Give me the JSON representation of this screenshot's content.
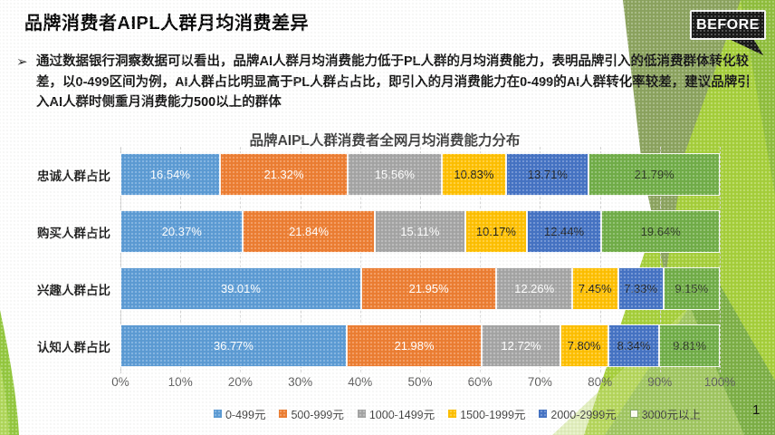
{
  "slide": {
    "title": "品牌消费者AIPL人群月均消费差异",
    "badge": "BEFORE",
    "bullet_char": "➢",
    "bullet_text": "通过数据银行洞察数据可以看出，品牌AI人群月均消费能力低于PL人群的月均消费能力，表明品牌引入的低消费群体转化较差，以0-499区间为例，AI人群占比明显高于PL人群占占比，即引入的月消费能力在0-499的AI人群转化率较差，建议品牌引入AI人群时侧重月消费能力500以上的群体",
    "page_number": "1"
  },
  "theme": {
    "badge_bg": "#161616",
    "deco_greens": [
      "#A6CF3A",
      "#8FBE3C",
      "#8BA35E",
      "#7CAF45",
      "#93C83E"
    ]
  },
  "chart_data": {
    "type": "bar",
    "orientation": "horizontal",
    "stacked_100": true,
    "title": "品牌AIPL人群消费者全网月均消费能力分布",
    "categories": [
      "忠诚人群占比",
      "购买人群占比",
      "兴趣人群占比",
      "认知人群占比"
    ],
    "series": [
      {
        "name": "0-499元",
        "color": "#5B9BD5",
        "label_color": "#FFFFFF",
        "legend_fill": "#5B9BD5",
        "legend_border": "#5B9BD5",
        "values": [
          16.54,
          20.37,
          39.01,
          36.77
        ]
      },
      {
        "name": "500-999元",
        "color": "#ED7D31",
        "label_color": "#FFFFFF",
        "legend_fill": "#ED7D31",
        "legend_border": "#ED7D31",
        "values": [
          21.32,
          21.84,
          21.95,
          21.98
        ]
      },
      {
        "name": "1000-1499元",
        "color": "#A5A5A5",
        "label_color": "#FFFFFF",
        "legend_fill": "#A5A5A5",
        "legend_border": "#A5A5A5",
        "values": [
          15.56,
          15.11,
          12.26,
          12.72
        ]
      },
      {
        "name": "1500-1999元",
        "color": "#FFC000",
        "label_color": "#1A1A1A",
        "legend_fill": "#FFC000",
        "legend_border": "#FFC000",
        "values": [
          10.83,
          10.17,
          7.45,
          7.8
        ]
      },
      {
        "name": "2000-2999元",
        "color": "#4472C4",
        "label_color": "#22262B",
        "legend_fill": "#4472C4",
        "legend_border": "#4472C4",
        "values": [
          13.71,
          12.44,
          7.33,
          8.34
        ]
      },
      {
        "name": "3000元以上",
        "color": "#70AD47",
        "label_color": "#2E3A26",
        "legend_fill": "#FDFDF2",
        "legend_border": "#8AA86A",
        "values": [
          21.79,
          19.64,
          9.15,
          9.81
        ]
      }
    ],
    "x_ticks": [
      "0%",
      "10%",
      "20%",
      "30%",
      "40%",
      "50%",
      "60%",
      "70%",
      "80%",
      "90%",
      "100%"
    ],
    "xlim": [
      0,
      100
    ],
    "value_decimals": 2,
    "value_suffix": "%",
    "legend_position": "bottom",
    "gridlines": "dashed-vertical"
  }
}
